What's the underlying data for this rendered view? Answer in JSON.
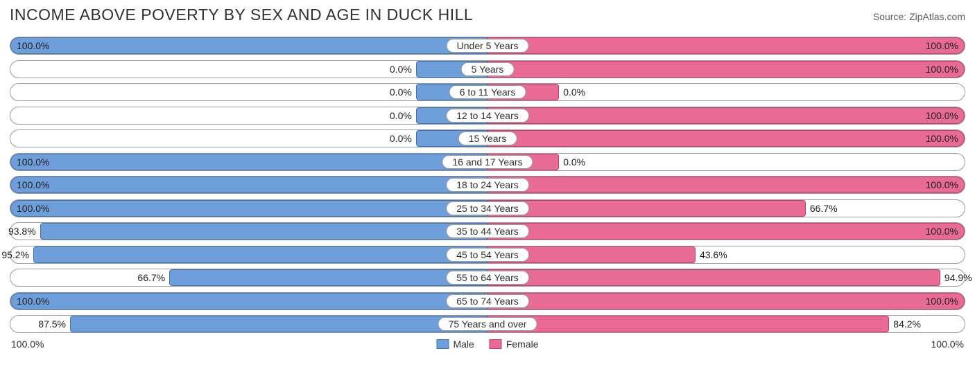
{
  "title": "INCOME ABOVE POVERTY BY SEX AND AGE IN DUCK HILL",
  "source": "Source: ZipAtlas.com",
  "colors": {
    "male_fill": "#6e9fdb",
    "male_border": "#3f72b5",
    "female_fill": "#e76b94",
    "female_border": "#c23e6d",
    "row_border": "#9a9a9a",
    "text": "#303030"
  },
  "min_bar_pct": 15,
  "axis": {
    "left": "100.0%",
    "right": "100.0%"
  },
  "legend": {
    "male": "Male",
    "female": "Female"
  },
  "categories": [
    {
      "label": "Under 5 Years",
      "male": 100.0,
      "female": 100.0
    },
    {
      "label": "5 Years",
      "male": 0.0,
      "female": 100.0
    },
    {
      "label": "6 to 11 Years",
      "male": 0.0,
      "female": 0.0
    },
    {
      "label": "12 to 14 Years",
      "male": 0.0,
      "female": 100.0
    },
    {
      "label": "15 Years",
      "male": 0.0,
      "female": 100.0
    },
    {
      "label": "16 and 17 Years",
      "male": 100.0,
      "female": 0.0
    },
    {
      "label": "18 to 24 Years",
      "male": 100.0,
      "female": 100.0
    },
    {
      "label": "25 to 34 Years",
      "male": 100.0,
      "female": 66.7
    },
    {
      "label": "35 to 44 Years",
      "male": 93.8,
      "female": 100.0
    },
    {
      "label": "45 to 54 Years",
      "male": 95.2,
      "female": 43.6
    },
    {
      "label": "55 to 64 Years",
      "male": 66.7,
      "female": 94.9
    },
    {
      "label": "65 to 74 Years",
      "male": 100.0,
      "female": 100.0
    },
    {
      "label": "75 Years and over",
      "male": 87.5,
      "female": 84.2
    }
  ]
}
